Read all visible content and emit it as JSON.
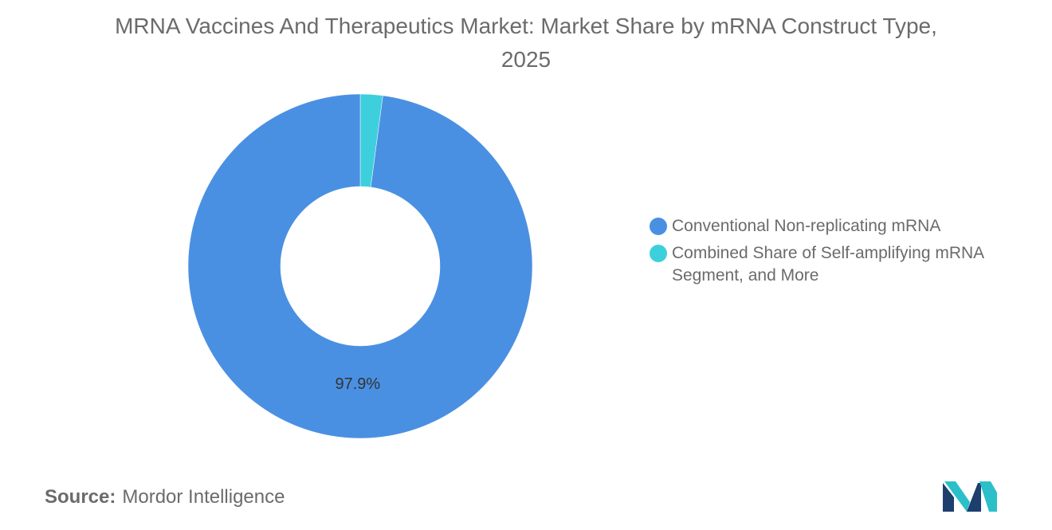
{
  "title": "MRNA Vaccines And Therapeutics Market: Market Share by mRNA Construct Type, 2025",
  "chart_data": {
    "type": "pie",
    "donut": true,
    "series": [
      {
        "name": "Conventional Non-replicating mRNA",
        "value": 97.9,
        "label": "97.9%",
        "color": "#4a90e2"
      },
      {
        "name": "Combined Share of Self-amplifying mRNA Segment, and More",
        "value": 2.1,
        "label": "",
        "color": "#3ecfdd"
      }
    ],
    "legend_position": "right"
  },
  "source": {
    "label": "Source:",
    "value": "Mordor Intelligence"
  },
  "logo": {
    "icon": "mordor-intelligence-logo-icon",
    "colors": [
      "#1c3f6e",
      "#2bbfc9"
    ]
  }
}
